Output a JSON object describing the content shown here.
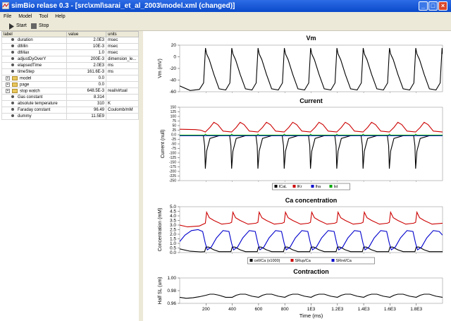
{
  "window": {
    "title": "simBio relase 0.3 - [src\\xml\\sarai_et_al_2003\\model.xml (changed)]",
    "icon": "app-icon",
    "controls": [
      "_",
      "□",
      "×"
    ]
  },
  "menu": [
    "File",
    "Model",
    "Tool",
    "Help"
  ],
  "toolbar": {
    "start_label": "Start",
    "stop_label": "Stop"
  },
  "table": {
    "headers": [
      "label",
      "value",
      "units"
    ],
    "rows": [
      {
        "kind": "leaf",
        "label": "duration",
        "value": "2.0E3",
        "units": "msec"
      },
      {
        "kind": "leaf",
        "label": "dtMin",
        "value": "10E-3",
        "units": "msec"
      },
      {
        "kind": "leaf",
        "label": "dtMax",
        "value": "1.0",
        "units": "msec"
      },
      {
        "kind": "leaf",
        "label": "adjustDyOverY",
        "value": "200E-3",
        "units": "dimension_le..."
      },
      {
        "kind": "leaf",
        "label": "elapsedTime",
        "value": "2.0E3",
        "units": "ms"
      },
      {
        "kind": "leaf",
        "label": "timeStep",
        "value": "161.6E-3",
        "units": "ms"
      },
      {
        "kind": "folder",
        "label": "model",
        "value": "0.0",
        "units": ""
      },
      {
        "kind": "folder",
        "label": "page",
        "value": "0.0",
        "units": ""
      },
      {
        "kind": "folder",
        "label": "stop watch",
        "value": "648.5E-3",
        "units": "real/virtual"
      },
      {
        "kind": "leaf",
        "label": "Gas constant",
        "value": "8.314",
        "units": ""
      },
      {
        "kind": "leaf",
        "label": "absolute temperature",
        "value": "310",
        "units": "K"
      },
      {
        "kind": "leaf",
        "label": "Faraday constant",
        "value": "96.49",
        "units": "Coulomb/mM"
      },
      {
        "kind": "leaf",
        "label": "dummy",
        "value": "11.5E9",
        "units": ""
      }
    ]
  },
  "chart_data": [
    {
      "type": "line",
      "title": "Vm",
      "xlabel": "",
      "ylabel": "Vm (mV)",
      "xlim": [
        0,
        2000
      ],
      "ylim": [
        -60,
        20
      ],
      "yticks": [
        "20",
        "0",
        "-20",
        "-40",
        "-60"
      ],
      "series": [
        {
          "color": "#000000",
          "x": [
            0,
            80,
            150,
            182,
            196,
            205,
            225,
            260,
            300,
            350,
            382,
            396,
            405,
            425,
            460,
            500,
            550,
            582,
            596,
            605,
            625,
            660,
            700,
            750,
            782,
            796,
            805,
            825,
            860,
            900,
            950,
            982,
            996,
            1005,
            1025,
            1060,
            1100,
            1150,
            1182,
            1196,
            1205,
            1225,
            1260,
            1300,
            1350,
            1382,
            1396,
            1405,
            1425,
            1460,
            1500,
            1550,
            1582,
            1596,
            1605,
            1625,
            1660,
            1700,
            1750,
            1782,
            1796,
            1805,
            1825,
            1860,
            1900,
            1950,
            1982,
            1996,
            2000
          ],
          "y": [
            -50,
            -58,
            -56,
            -45,
            15,
            5,
            -5,
            -30,
            -55,
            -57,
            -45,
            15,
            5,
            -5,
            -30,
            -55,
            -57,
            -45,
            15,
            5,
            -5,
            -30,
            -55,
            -57,
            -45,
            15,
            5,
            -5,
            -30,
            -55,
            -57,
            -45,
            15,
            5,
            -5,
            -30,
            -55,
            -57,
            -45,
            15,
            5,
            -5,
            -30,
            -55,
            -57,
            -45,
            15,
            5,
            -5,
            -30,
            -55,
            -57,
            -45,
            15,
            5,
            -5,
            -30,
            -55,
            -57,
            -45,
            15,
            5,
            -5,
            -30,
            -55,
            -57,
            -45,
            15,
            5
          ]
        }
      ]
    },
    {
      "type": "line",
      "title": "Current",
      "xlabel": "",
      "ylabel": "Current (null)",
      "xlim": [
        0,
        2000
      ],
      "ylim": [
        -250,
        150
      ],
      "yticks": [
        "150",
        "125",
        "100",
        "75",
        "50",
        "25",
        "0.0",
        "-25",
        "-50",
        "-75",
        "-100",
        "-125",
        "-150",
        "-175",
        "-200",
        "-225",
        "-250"
      ],
      "legend_position": "bottom",
      "series": [
        {
          "name": "ICaL",
          "color": "#000000",
          "x": [
            0,
            160,
            180,
            190,
            195,
            205,
            230,
            300,
            360,
            380,
            390,
            395,
            405,
            430,
            500,
            560,
            580,
            590,
            595,
            605,
            630,
            700,
            760,
            780,
            790,
            795,
            805,
            830,
            900,
            960,
            980,
            990,
            995,
            1005,
            1030,
            1100,
            1160,
            1180,
            1190,
            1195,
            1205,
            1230,
            1300,
            1360,
            1380,
            1390,
            1395,
            1405,
            1430,
            1500,
            1560,
            1580,
            1590,
            1595,
            1605,
            1630,
            1700,
            1760,
            1780,
            1790,
            1795,
            1805,
            1830,
            1900,
            2000
          ],
          "y": [
            -3,
            -3,
            -5,
            -60,
            -185,
            -90,
            -20,
            -5,
            -3,
            -5,
            -60,
            -185,
            -90,
            -20,
            -5,
            -3,
            -5,
            -60,
            -185,
            -90,
            -20,
            -5,
            -3,
            -5,
            -60,
            -185,
            -90,
            -20,
            -5,
            -3,
            -5,
            -60,
            -185,
            -90,
            -20,
            -5,
            -3,
            -5,
            -60,
            -185,
            -90,
            -20,
            -5,
            -3,
            -5,
            -60,
            -185,
            -90,
            -20,
            -5,
            -3,
            -5,
            -60,
            -185,
            -90,
            -20,
            -5,
            -3,
            -5,
            -60,
            -185,
            -90,
            -20,
            -5,
            -3
          ]
        },
        {
          "name": "IKr",
          "color": "#cc0000",
          "x": [
            0,
            120,
            160,
            195,
            230,
            260,
            290,
            330,
            395,
            430,
            460,
            490,
            530,
            595,
            630,
            660,
            690,
            730,
            795,
            830,
            860,
            890,
            930,
            995,
            1030,
            1060,
            1090,
            1130,
            1195,
            1230,
            1260,
            1290,
            1330,
            1395,
            1430,
            1460,
            1490,
            1530,
            1595,
            1630,
            1660,
            1690,
            1730,
            1795,
            1830,
            1860,
            1890,
            1930,
            2000
          ],
          "y": [
            30,
            28,
            25,
            15,
            40,
            68,
            55,
            20,
            15,
            40,
            68,
            55,
            20,
            15,
            40,
            68,
            55,
            20,
            15,
            40,
            68,
            55,
            20,
            15,
            40,
            68,
            55,
            20,
            15,
            40,
            68,
            55,
            20,
            15,
            40,
            68,
            55,
            20,
            15,
            40,
            68,
            55,
            20,
            15,
            40,
            68,
            55,
            20,
            15
          ]
        },
        {
          "name": "Iha",
          "color": "#0000cc",
          "x": [
            0,
            2000
          ],
          "y": [
            -5,
            -5
          ]
        },
        {
          "name": "Ist",
          "color": "#00aa00",
          "x": [
            0,
            190,
            195,
            205,
            390,
            395,
            405,
            590,
            595,
            605,
            790,
            795,
            805,
            990,
            995,
            1005,
            1190,
            1195,
            1205,
            1390,
            1395,
            1405,
            1590,
            1595,
            1605,
            1790,
            1795,
            1805,
            2000
          ],
          "y": [
            -2,
            -2,
            3,
            -2,
            -2,
            3,
            -2,
            -2,
            3,
            -2,
            -2,
            3,
            -2,
            -2,
            3,
            -2,
            -2,
            3,
            -2,
            -2,
            3,
            -2,
            -2,
            3,
            -2,
            -2,
            3,
            -2,
            -2
          ]
        }
      ]
    },
    {
      "type": "line",
      "title": "Ca concentration",
      "xlabel": "",
      "ylabel": "Concentration (mM)",
      "xlim": [
        0,
        2000
      ],
      "ylim": [
        0,
        5
      ],
      "yticks": [
        "5.0",
        "4.5",
        "4.0",
        "3.5",
        "3.0",
        "2.5",
        "2.0",
        "1.5",
        "1.0",
        "0.5",
        "0.0"
      ],
      "legend_position": "bottom",
      "series": [
        {
          "name": "cell/Ca (x1000)",
          "color": "#000000",
          "x": [
            0,
            80,
            160,
            190,
            200,
            220,
            260,
            300,
            390,
            400,
            420,
            460,
            500,
            590,
            600,
            620,
            660,
            700,
            790,
            800,
            820,
            860,
            900,
            990,
            1000,
            1020,
            1060,
            1100,
            1190,
            1200,
            1220,
            1260,
            1300,
            1390,
            1400,
            1420,
            1460,
            1500,
            1590,
            1600,
            1620,
            1660,
            1700,
            1790,
            1800,
            1820,
            1860,
            1900,
            2000
          ],
          "y": [
            0.4,
            0.15,
            0.08,
            0.1,
            0.6,
            0.6,
            0.3,
            0.1,
            0.1,
            0.6,
            0.6,
            0.3,
            0.1,
            0.1,
            0.6,
            0.6,
            0.3,
            0.1,
            0.1,
            0.6,
            0.6,
            0.3,
            0.1,
            0.1,
            0.6,
            0.6,
            0.3,
            0.1,
            0.1,
            0.6,
            0.6,
            0.3,
            0.1,
            0.1,
            0.6,
            0.6,
            0.3,
            0.1,
            0.1,
            0.6,
            0.6,
            0.3,
            0.1,
            0.1,
            0.6,
            0.6,
            0.3,
            0.1,
            0.1
          ]
        },
        {
          "name": "SRup/Ca",
          "color": "#cc0000",
          "x": [
            0,
            60,
            150,
            195,
            205,
            225,
            260,
            320,
            380,
            395,
            405,
            425,
            460,
            520,
            580,
            595,
            605,
            625,
            660,
            720,
            780,
            795,
            805,
            825,
            860,
            920,
            980,
            995,
            1005,
            1025,
            1060,
            1120,
            1180,
            1195,
            1205,
            1225,
            1260,
            1320,
            1380,
            1395,
            1405,
            1425,
            1460,
            1520,
            1580,
            1595,
            1605,
            1625,
            1660,
            1720,
            1780,
            1795,
            1805,
            1825,
            1860,
            1920,
            2000
          ],
          "y": [
            3.0,
            2.8,
            2.9,
            3.2,
            4.4,
            3.8,
            3.5,
            3.1,
            3.2,
            3.3,
            4.4,
            3.8,
            3.5,
            3.1,
            3.2,
            3.3,
            4.4,
            3.8,
            3.5,
            3.1,
            3.2,
            3.3,
            4.4,
            3.8,
            3.5,
            3.1,
            3.2,
            3.3,
            4.4,
            3.8,
            3.5,
            3.1,
            3.2,
            3.3,
            4.4,
            3.8,
            3.5,
            3.1,
            3.2,
            3.3,
            4.4,
            3.8,
            3.5,
            3.1,
            3.2,
            3.3,
            4.4,
            3.8,
            3.5,
            3.1,
            3.2,
            3.3,
            4.4,
            3.8,
            3.5,
            3.1,
            3.2
          ]
        },
        {
          "name": "SRrel/Ca",
          "color": "#0000cc",
          "x": [
            0,
            40,
            90,
            140,
            175,
            195,
            210,
            240,
            280,
            330,
            375,
            395,
            410,
            440,
            480,
            530,
            575,
            595,
            610,
            640,
            680,
            730,
            775,
            795,
            810,
            840,
            880,
            930,
            975,
            995,
            1010,
            1040,
            1080,
            1130,
            1175,
            1195,
            1210,
            1240,
            1280,
            1330,
            1375,
            1395,
            1410,
            1440,
            1480,
            1530,
            1575,
            1595,
            1610,
            1640,
            1680,
            1730,
            1775,
            1795,
            1810,
            1840,
            1880,
            1930,
            1975,
            2000
          ],
          "y": [
            1.2,
            1.9,
            2.4,
            2.5,
            2.3,
            1.0,
            0.3,
            0.6,
            1.6,
            2.4,
            2.3,
            1.0,
            0.3,
            0.6,
            1.6,
            2.4,
            2.3,
            1.0,
            0.3,
            0.6,
            1.6,
            2.4,
            2.3,
            1.0,
            0.3,
            0.6,
            1.6,
            2.4,
            2.3,
            1.0,
            0.3,
            0.6,
            1.6,
            2.4,
            2.3,
            1.0,
            0.3,
            0.6,
            1.6,
            2.4,
            2.3,
            1.0,
            0.3,
            0.6,
            1.6,
            2.4,
            2.3,
            1.0,
            0.3,
            0.6,
            1.6,
            2.4,
            2.3,
            1.0,
            0.3,
            0.6,
            1.6,
            2.4,
            2.3,
            1.9
          ]
        }
      ]
    },
    {
      "type": "line",
      "title": "Contraction",
      "xlabel": "Time (ms)",
      "ylabel": "Half SL (um)",
      "xlim": [
        0,
        2000
      ],
      "ylim": [
        0.95,
        1.0
      ],
      "yticks": [
        "1.00",
        "0.98",
        "0.96"
      ],
      "xticks": [
        "200",
        "400",
        "600",
        "800",
        "1E3",
        "1.2E3",
        "1.4E3",
        "1.6E3",
        "1.8E3"
      ],
      "series": [
        {
          "color": "#000000",
          "x": [
            0,
            50,
            100,
            150,
            200,
            230,
            260,
            300,
            350,
            400,
            430,
            460,
            500,
            550,
            600,
            630,
            660,
            700,
            750,
            800,
            830,
            860,
            900,
            950,
            1000,
            1030,
            1060,
            1100,
            1150,
            1200,
            1230,
            1260,
            1300,
            1350,
            1400,
            1430,
            1460,
            1500,
            1550,
            1600,
            1630,
            1660,
            1700,
            1750,
            1800,
            1830,
            1860,
            1900,
            1950,
            2000
          ],
          "y": [
            0.962,
            0.96,
            0.961,
            0.963,
            0.966,
            0.968,
            0.968,
            0.966,
            0.962,
            0.962,
            0.966,
            0.968,
            0.968,
            0.964,
            0.962,
            0.966,
            0.968,
            0.968,
            0.964,
            0.962,
            0.966,
            0.968,
            0.968,
            0.964,
            0.962,
            0.966,
            0.968,
            0.968,
            0.964,
            0.962,
            0.966,
            0.968,
            0.968,
            0.964,
            0.962,
            0.966,
            0.968,
            0.968,
            0.964,
            0.962,
            0.966,
            0.968,
            0.968,
            0.964,
            0.962,
            0.966,
            0.968,
            0.968,
            0.964,
            0.962
          ]
        }
      ]
    }
  ]
}
